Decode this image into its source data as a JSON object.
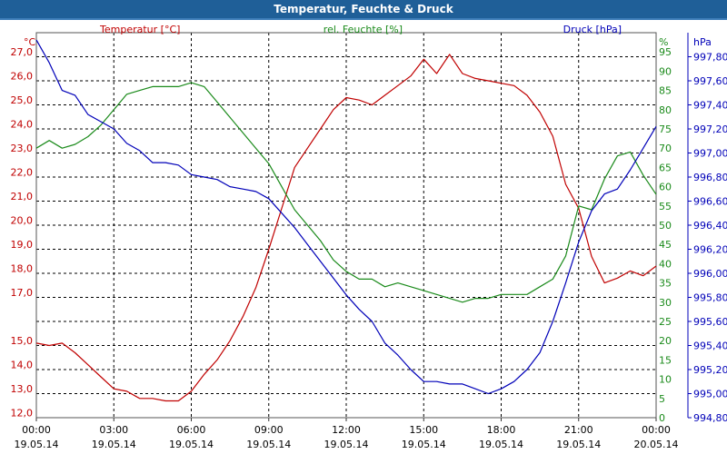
{
  "window": {
    "title": "Temperatur, Feuchte & Druck"
  },
  "colors": {
    "temperature": "#c00000",
    "humidity": "#1a8a1a",
    "pressure": "#0000b8",
    "grid": "#000000",
    "title_bar": "#1f5f98"
  },
  "chart_data": {
    "type": "line",
    "title": "Temperatur, Feuchte & Druck",
    "x_ticks": [
      {
        "time": "00:00",
        "date": "19.05.14"
      },
      {
        "time": "03:00",
        "date": "19.05.14"
      },
      {
        "time": "06:00",
        "date": "19.05.14"
      },
      {
        "time": "09:00",
        "date": "19.05.14"
      },
      {
        "time": "12:00",
        "date": "19.05.14"
      },
      {
        "time": "15:00",
        "date": "19.05.14"
      },
      {
        "time": "18:00",
        "date": "19.05.14"
      },
      {
        "time": "21:00",
        "date": "19.05.14"
      },
      {
        "time": "00:00",
        "date": "20.05.14"
      }
    ],
    "xlim": [
      0,
      24
    ],
    "axes": {
      "temperature": {
        "label": "Temperatur [°C]",
        "unit": "°C",
        "ylim": [
          11.8,
          27.8
        ],
        "ticks": [
          "12,0",
          "13,0",
          "14,0",
          "15,0",
          "17,0",
          "18,0",
          "19,0",
          "20,0",
          "21,0",
          "22,0",
          "23,0",
          "24,0",
          "25,0",
          "26,0",
          "27,0"
        ]
      },
      "humidity": {
        "label": "rel. Feuchte [%]",
        "unit": "%",
        "ylim": [
          0,
          100
        ],
        "ticks": [
          "0",
          "5",
          "10",
          "15",
          "20",
          "25",
          "30",
          "35",
          "40",
          "45",
          "50",
          "55",
          "60",
          "65",
          "70",
          "75",
          "80",
          "85",
          "90",
          "95"
        ]
      },
      "pressure": {
        "label": "Druck [hPa]",
        "unit": "hPa",
        "ylim": [
          994.8,
          998.0
        ],
        "ticks": [
          "994,80",
          "995,00",
          "995,20",
          "995,40",
          "995,60",
          "995,80",
          "996,00",
          "996,20",
          "996,40",
          "996,60",
          "996,80",
          "997,00",
          "997,20",
          "997,40",
          "997,60",
          "997,80"
        ]
      }
    },
    "series": [
      {
        "name": "Temperatur [°C]",
        "axis": "temperature",
        "x": [
          0,
          0.5,
          1,
          1.5,
          2,
          2.5,
          3,
          3.5,
          4,
          4.5,
          5,
          5.5,
          6,
          6.5,
          7,
          7.5,
          8,
          8.5,
          9,
          9.5,
          10,
          10.5,
          11,
          11.5,
          12,
          12.5,
          13,
          13.5,
          14,
          14.5,
          15,
          15.5,
          16,
          16.5,
          17,
          17.5,
          18,
          18.5,
          19,
          19.5,
          20,
          20.5,
          21,
          21.5,
          22,
          22.5,
          23,
          23.5,
          24
        ],
        "values": [
          14.9,
          14.8,
          14.9,
          14.5,
          14.0,
          13.5,
          13.0,
          12.9,
          12.6,
          12.6,
          12.5,
          12.5,
          12.9,
          13.6,
          14.2,
          15.0,
          16.0,
          17.2,
          18.8,
          20.5,
          22.2,
          23.0,
          23.8,
          24.6,
          25.1,
          25.0,
          24.8,
          25.2,
          25.6,
          26.0,
          26.7,
          26.1,
          26.9,
          26.1,
          25.9,
          25.8,
          25.7,
          25.6,
          25.2,
          24.5,
          23.5,
          21.5,
          20.5,
          18.5,
          17.4,
          17.6,
          17.9,
          17.7,
          18.1
        ]
      },
      {
        "name": "rel. Feuchte [%]",
        "axis": "humidity",
        "x": [
          0,
          0.5,
          1,
          1.5,
          2,
          2.5,
          3,
          3.5,
          4,
          4.5,
          5,
          5.5,
          6,
          6.5,
          7,
          7.5,
          8,
          8.5,
          9,
          9.5,
          10,
          10.5,
          11,
          11.5,
          12,
          12.5,
          13,
          13.5,
          14,
          14.5,
          15,
          15.5,
          16,
          16.5,
          17,
          17.5,
          18,
          18.5,
          19,
          19.5,
          20,
          20.5,
          21,
          21.5,
          22,
          22.5,
          23,
          23.5,
          24
        ],
        "values": [
          70,
          72,
          70,
          71,
          73,
          76,
          80,
          84,
          85,
          86,
          86,
          86,
          87,
          86,
          82,
          78,
          74,
          70,
          66,
          60,
          54,
          50,
          46,
          41,
          38,
          36,
          36,
          34,
          35,
          34,
          33,
          32,
          31,
          30,
          31,
          31,
          32,
          32,
          32,
          34,
          36,
          42,
          55,
          54,
          62,
          68,
          69,
          63,
          58
        ]
      },
      {
        "name": "Druck [hPa]",
        "axis": "pressure",
        "x": [
          0,
          0.5,
          1,
          1.5,
          2,
          2.5,
          3,
          3.5,
          4,
          4.5,
          5,
          5.5,
          6,
          6.5,
          7,
          7.5,
          8,
          8.5,
          9,
          9.5,
          10,
          10.5,
          11,
          11.5,
          12,
          12.5,
          13,
          13.5,
          14,
          14.5,
          15,
          15.5,
          16,
          16.5,
          17,
          17.5,
          18,
          18.5,
          19,
          19.5,
          20,
          20.5,
          21,
          21.5,
          22,
          22.5,
          23,
          23.5,
          24
        ],
        "values": [
          997.94,
          997.75,
          997.52,
          997.48,
          997.32,
          997.26,
          997.2,
          997.08,
          997.02,
          996.92,
          996.92,
          996.9,
          996.82,
          996.8,
          996.78,
          996.72,
          996.7,
          996.68,
          996.62,
          996.5,
          996.38,
          996.24,
          996.1,
          995.96,
          995.82,
          995.7,
          995.6,
          995.42,
          995.32,
          995.2,
          995.1,
          995.1,
          995.08,
          995.08,
          995.04,
          995.0,
          995.04,
          995.1,
          995.2,
          995.34,
          995.6,
          995.92,
          996.26,
          996.52,
          996.66,
          996.7,
          996.86,
          997.04,
          997.22
        ]
      }
    ]
  }
}
